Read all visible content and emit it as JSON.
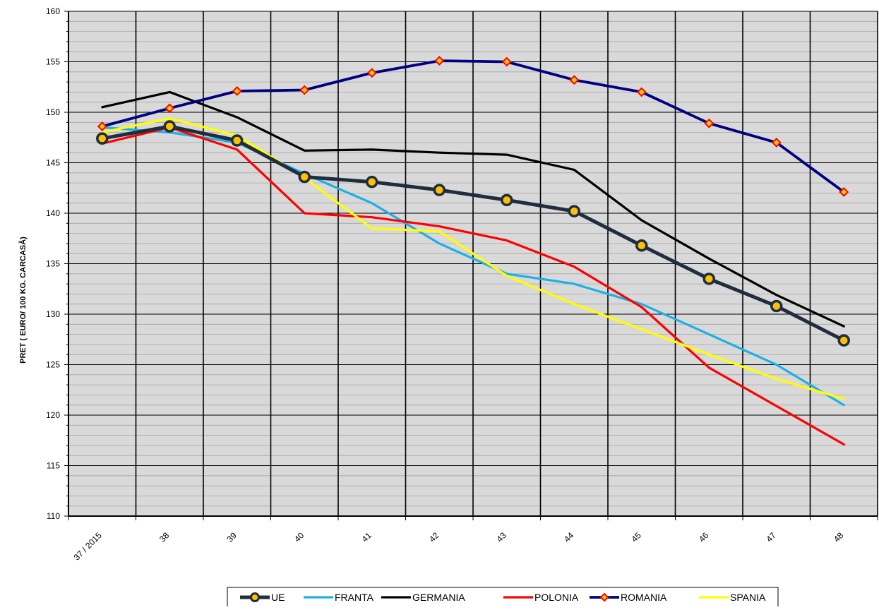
{
  "chart_data": {
    "type": "line",
    "title": "",
    "xlabel": "",
    "ylabel": "PRET ( EURO/ 100 KG. CARCASĂ)",
    "categories": [
      "37 / 2015",
      "38",
      "39",
      "40",
      "41",
      "42",
      "43",
      "44",
      "45",
      "46",
      "47",
      "48"
    ],
    "ylim": [
      110,
      160
    ],
    "yticks": [
      110,
      115,
      120,
      125,
      130,
      135,
      140,
      145,
      150,
      155,
      160
    ],
    "grid": true,
    "legend_position": "bottom",
    "colors": {
      "plot_bg": "#d9d9d9",
      "UE": "#1f2d3d",
      "FRANTA": "#1cb0e8",
      "GERMANIA": "#000000",
      "POLONIA": "#ff0000",
      "ROMANIA": "#000080",
      "SPANIA": "#ffff00",
      "marker_fill_ue": "#ffc000",
      "marker_fill_ro": "#ffcc00",
      "marker_edge_ro": "#ff0000"
    },
    "series": [
      {
        "name": "UE",
        "marker": "circle",
        "values": [
          147.4,
          148.6,
          147.2,
          143.6,
          143.1,
          142.3,
          141.3,
          140.2,
          136.8,
          133.5,
          130.8,
          127.4
        ]
      },
      {
        "name": "FRANTA",
        "marker": "none",
        "values": [
          148.5,
          148.0,
          147.0,
          143.9,
          141.0,
          137.0,
          134.0,
          133.0,
          131.0,
          128.0,
          125.0,
          121.0
        ]
      },
      {
        "name": "GERMANIA",
        "marker": "none",
        "values": [
          150.5,
          152.0,
          149.5,
          146.2,
          146.3,
          146.0,
          145.8,
          144.3,
          139.3,
          135.5,
          131.9,
          128.8
        ]
      },
      {
        "name": "POLONIA",
        "marker": "none",
        "values": [
          146.9,
          148.5,
          146.3,
          140.0,
          139.6,
          138.7,
          137.3,
          134.7,
          130.7,
          124.7,
          120.9,
          117.1
        ]
      },
      {
        "name": "ROMANIA",
        "marker": "diamond",
        "values": [
          148.6,
          150.4,
          152.1,
          152.2,
          153.9,
          155.1,
          155.0,
          153.2,
          152.0,
          148.9,
          147.0,
          142.1
        ]
      },
      {
        "name": "SPANIA",
        "marker": "none",
        "values": [
          148.0,
          149.4,
          147.7,
          143.5,
          138.5,
          138.2,
          133.8,
          131.0,
          128.5,
          126.0,
          123.6,
          121.6
        ]
      }
    ]
  }
}
